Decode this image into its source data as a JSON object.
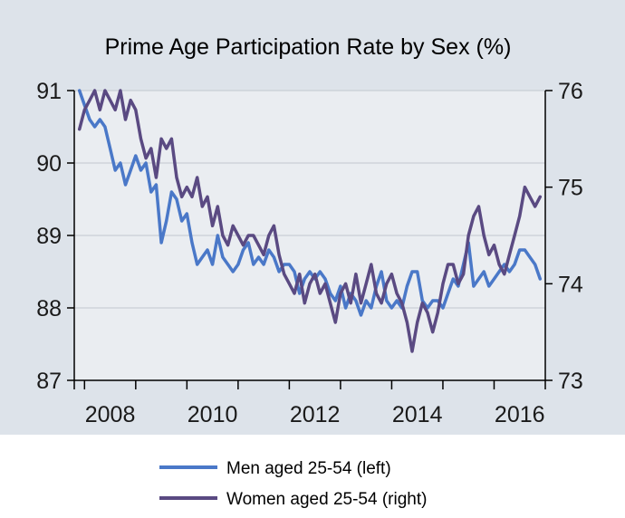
{
  "chart_data": {
    "type": "line",
    "title": "Prime Age Participation Rate by Sex (%)",
    "x_range": [
      2007.8,
      2017.0
    ],
    "x_ticks": [
      2008,
      2010,
      2012,
      2014,
      2016
    ],
    "x_tick_labels": [
      "2008",
      "2010",
      "2012",
      "2014",
      "2016"
    ],
    "y_left": {
      "range": [
        87,
        91
      ],
      "ticks": [
        87,
        88,
        89,
        90,
        91
      ],
      "tick_labels": [
        "87",
        "88",
        "89",
        "90",
        "91"
      ]
    },
    "y_right": {
      "range": [
        73,
        76
      ],
      "ticks": [
        73,
        74,
        75,
        76
      ],
      "tick_labels": [
        "73",
        "74",
        "75",
        "76"
      ]
    },
    "grid": true,
    "legend_position": "bottom",
    "series": [
      {
        "name": "Men aged 25-54 (left)",
        "axis": "left",
        "color": "#4a78c8",
        "x": [
          2007.9,
          2008.0,
          2008.1,
          2008.2,
          2008.3,
          2008.4,
          2008.5,
          2008.6,
          2008.7,
          2008.8,
          2008.9,
          2009.0,
          2009.1,
          2009.2,
          2009.3,
          2009.4,
          2009.5,
          2009.6,
          2009.7,
          2009.8,
          2009.9,
          2010.0,
          2010.1,
          2010.2,
          2010.3,
          2010.4,
          2010.5,
          2010.6,
          2010.7,
          2010.8,
          2010.9,
          2011.0,
          2011.1,
          2011.2,
          2011.3,
          2011.4,
          2011.5,
          2011.6,
          2011.7,
          2011.8,
          2011.9,
          2012.0,
          2012.1,
          2012.2,
          2012.3,
          2012.4,
          2012.5,
          2012.6,
          2012.7,
          2012.8,
          2012.9,
          2013.0,
          2013.1,
          2013.2,
          2013.3,
          2013.4,
          2013.5,
          2013.6,
          2013.7,
          2013.8,
          2013.9,
          2014.0,
          2014.1,
          2014.2,
          2014.3,
          2014.4,
          2014.5,
          2014.6,
          2014.7,
          2014.8,
          2014.9,
          2015.0,
          2015.1,
          2015.2,
          2015.3,
          2015.4,
          2015.5,
          2015.6,
          2015.7,
          2015.8,
          2015.9,
          2016.0,
          2016.1,
          2016.2,
          2016.3,
          2016.4,
          2016.5,
          2016.6,
          2016.7,
          2016.8,
          2016.9
        ],
        "values": [
          91.0,
          90.8,
          90.6,
          90.5,
          90.6,
          90.5,
          90.2,
          89.9,
          90.0,
          89.7,
          89.9,
          90.1,
          89.9,
          90.0,
          89.6,
          89.7,
          88.9,
          89.2,
          89.6,
          89.5,
          89.2,
          89.3,
          88.9,
          88.6,
          88.7,
          88.8,
          88.6,
          89.0,
          88.7,
          88.6,
          88.5,
          88.6,
          88.8,
          88.9,
          88.6,
          88.7,
          88.6,
          88.8,
          88.7,
          88.5,
          88.6,
          88.6,
          88.5,
          88.2,
          88.4,
          88.5,
          88.4,
          88.5,
          88.4,
          88.2,
          88.1,
          88.3,
          88.0,
          88.2,
          88.1,
          87.9,
          88.1,
          88.0,
          88.3,
          88.5,
          88.1,
          88.0,
          88.1,
          88.0,
          88.3,
          88.5,
          88.5,
          88.1,
          88.0,
          88.1,
          88.1,
          88.0,
          88.2,
          88.4,
          88.3,
          88.6,
          88.9,
          88.3,
          88.4,
          88.5,
          88.3,
          88.4,
          88.5,
          88.6,
          88.5,
          88.6,
          88.8,
          88.8,
          88.7,
          88.6,
          88.4
        ]
      },
      {
        "name": "Women aged 25-54 (right)",
        "axis": "right",
        "color": "#5a4a82",
        "x": [
          2007.9,
          2008.0,
          2008.1,
          2008.2,
          2008.3,
          2008.4,
          2008.5,
          2008.6,
          2008.7,
          2008.8,
          2008.9,
          2009.0,
          2009.1,
          2009.2,
          2009.3,
          2009.4,
          2009.5,
          2009.6,
          2009.7,
          2009.8,
          2009.9,
          2010.0,
          2010.1,
          2010.2,
          2010.3,
          2010.4,
          2010.5,
          2010.6,
          2010.7,
          2010.8,
          2010.9,
          2011.0,
          2011.1,
          2011.2,
          2011.3,
          2011.4,
          2011.5,
          2011.6,
          2011.7,
          2011.8,
          2011.9,
          2012.0,
          2012.1,
          2012.2,
          2012.3,
          2012.4,
          2012.5,
          2012.6,
          2012.7,
          2012.8,
          2012.9,
          2013.0,
          2013.1,
          2013.2,
          2013.3,
          2013.4,
          2013.5,
          2013.6,
          2013.7,
          2013.8,
          2013.9,
          2014.0,
          2014.1,
          2014.2,
          2014.3,
          2014.4,
          2014.5,
          2014.6,
          2014.7,
          2014.8,
          2014.9,
          2015.0,
          2015.1,
          2015.2,
          2015.3,
          2015.4,
          2015.5,
          2015.6,
          2015.7,
          2015.8,
          2015.9,
          2016.0,
          2016.1,
          2016.2,
          2016.3,
          2016.4,
          2016.5,
          2016.6,
          2016.7,
          2016.8,
          2016.9
        ],
        "values": [
          75.6,
          75.8,
          75.9,
          76.0,
          75.8,
          76.0,
          75.9,
          75.8,
          76.0,
          75.7,
          75.9,
          75.8,
          75.5,
          75.3,
          75.4,
          75.1,
          75.5,
          75.4,
          75.5,
          75.1,
          74.9,
          75.0,
          74.9,
          75.1,
          74.8,
          74.9,
          74.6,
          74.8,
          74.5,
          74.4,
          74.6,
          74.5,
          74.4,
          74.5,
          74.5,
          74.4,
          74.3,
          74.5,
          74.6,
          74.3,
          74.1,
          74.0,
          73.9,
          74.1,
          73.8,
          74.0,
          74.1,
          73.9,
          74.0,
          73.8,
          73.6,
          73.9,
          74.0,
          73.8,
          74.1,
          73.8,
          74.0,
          74.2,
          73.9,
          73.8,
          74.0,
          74.1,
          73.9,
          73.8,
          73.6,
          73.3,
          73.6,
          73.8,
          73.7,
          73.5,
          73.7,
          74.0,
          74.2,
          74.2,
          74.0,
          74.1,
          74.5,
          74.7,
          74.8,
          74.5,
          74.3,
          74.4,
          74.2,
          74.1,
          74.3,
          74.5,
          74.7,
          75.0,
          74.9,
          74.8,
          74.9
        ]
      }
    ]
  }
}
